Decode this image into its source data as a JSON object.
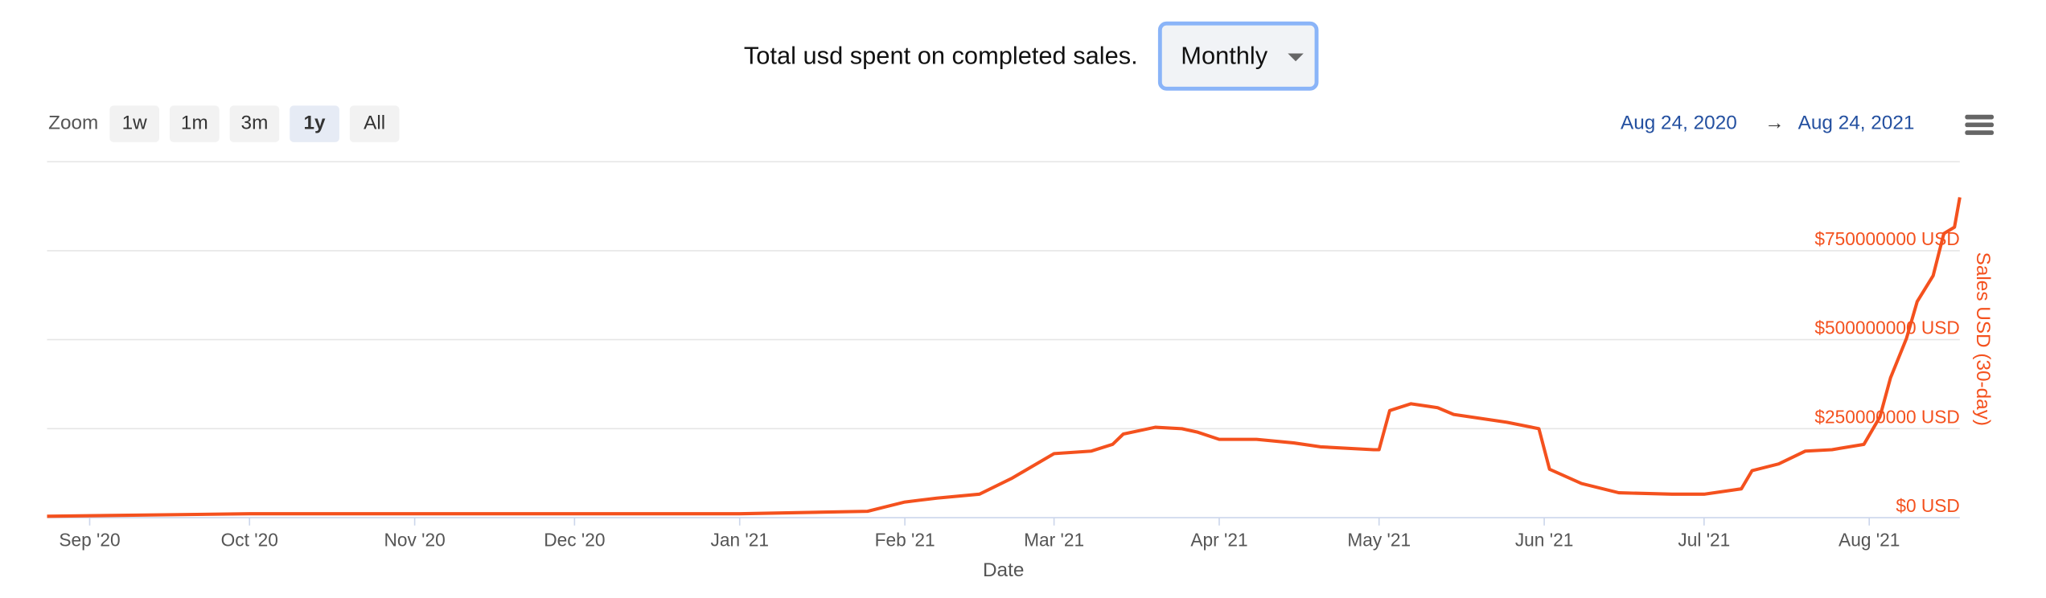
{
  "header": {
    "title": "Total usd spent on completed sales.",
    "period": "Monthly"
  },
  "zoom": {
    "label": "Zoom",
    "buttons": [
      "1w",
      "1m",
      "3m",
      "1y",
      "All"
    ],
    "selected": "1y"
  },
  "range": {
    "from": "Aug 24, 2020",
    "arrow": "→",
    "to": "Aug 24, 2021"
  },
  "chart_data": {
    "type": "line",
    "x_label": "Date",
    "y_label": "Sales USD (30-day)",
    "x": [
      "2020-08-24",
      "2020-10-01",
      "2020-11-01",
      "2021-01-01",
      "2021-01-25",
      "2021-02-01",
      "2021-02-07",
      "2021-02-15",
      "2021-02-21",
      "2021-03-01",
      "2021-03-08",
      "2021-03-12",
      "2021-03-14",
      "2021-03-20",
      "2021-03-25",
      "2021-03-28",
      "2021-04-01",
      "2021-04-08",
      "2021-04-15",
      "2021-04-20",
      "2021-04-30",
      "2021-05-01",
      "2021-05-03",
      "2021-05-07",
      "2021-05-12",
      "2021-05-15",
      "2021-05-25",
      "2021-05-31",
      "2021-06-02",
      "2021-06-08",
      "2021-06-15",
      "2021-06-25",
      "2021-07-01",
      "2021-07-08",
      "2021-07-10",
      "2021-07-15",
      "2021-07-20",
      "2021-07-25",
      "2021-07-31",
      "2021-08-03",
      "2021-08-05",
      "2021-08-08",
      "2021-08-10",
      "2021-08-13",
      "2021-08-15",
      "2021-08-17",
      "2021-08-18"
    ],
    "series": [
      {
        "name": "Sales USD (30-day)",
        "color": "#f4511e",
        "values": [
          4000000,
          11000000,
          11000000,
          11000000,
          18000000,
          44000000,
          55000000,
          66000000,
          110000000,
          180000000,
          187000000,
          206000000,
          235000000,
          254000000,
          250000000,
          240000000,
          220000000,
          220000000,
          210000000,
          199000000,
          191000000,
          191000000,
          301000000,
          320000000,
          309000000,
          290000000,
          268000000,
          250000000,
          136000000,
          96000000,
          70000000,
          66000000,
          66000000,
          81000000,
          132000000,
          151000000,
          187000000,
          191000000,
          206000000,
          283000000,
          393000000,
          504000000,
          607000000,
          680000000,
          798000000,
          816000000,
          900000000
        ]
      }
    ],
    "xlim": [
      "2020-08-24",
      "2021-08-18"
    ],
    "xticks": [
      {
        "value": "2020-09-01",
        "label": "Sep '20"
      },
      {
        "value": "2020-10-01",
        "label": "Oct '20"
      },
      {
        "value": "2020-11-01",
        "label": "Nov '20"
      },
      {
        "value": "2020-12-01",
        "label": "Dec '20"
      },
      {
        "value": "2021-01-01",
        "label": "Jan '21"
      },
      {
        "value": "2021-02-01",
        "label": "Feb '21"
      },
      {
        "value": "2021-03-01",
        "label": "Mar '21"
      },
      {
        "value": "2021-04-01",
        "label": "Apr '21"
      },
      {
        "value": "2021-05-01",
        "label": "May '21"
      },
      {
        "value": "2021-06-01",
        "label": "Jun '21"
      },
      {
        "value": "2021-07-01",
        "label": "Jul '21"
      },
      {
        "value": "2021-08-01",
        "label": "Aug '21"
      }
    ],
    "ylim": [
      0,
      1000000000
    ],
    "yticks": [
      {
        "value": 0,
        "label": "$0 USD"
      },
      {
        "value": 250000000,
        "label": "$250000000 USD"
      },
      {
        "value": 500000000,
        "label": "$500000000 USD"
      },
      {
        "value": 750000000,
        "label": "$750000000 USD"
      }
    ],
    "grid": true
  }
}
